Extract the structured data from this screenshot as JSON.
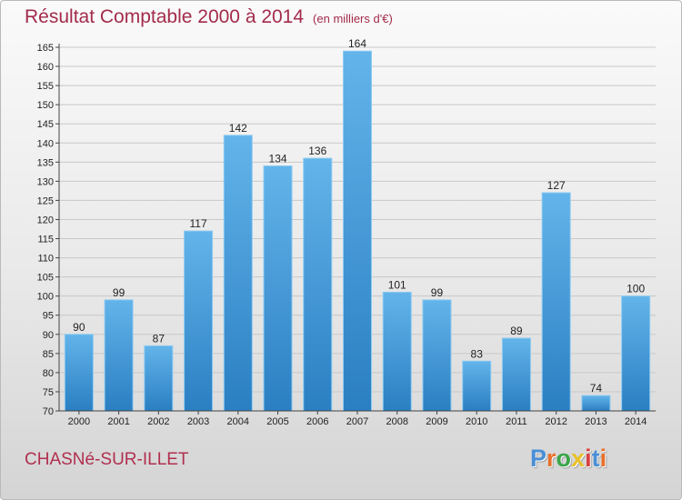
{
  "header": {
    "title": "Résultat Comptable 2000 à 2014",
    "unit": "(en milliers d'€)"
  },
  "footer": {
    "place": "CHASNé-SUR-ILLET",
    "logo": "Proxiti"
  },
  "colors": {
    "bar_light": "#63b4ea",
    "bar_dark": "#2a7fc2",
    "title": "#a32b4b",
    "logo": [
      "#4a8fd6",
      "#e8702a",
      "#3aa64a",
      "#e8c12a",
      "#d94040",
      "#4a8fd6",
      "#e8702a"
    ]
  },
  "chart_data": {
    "type": "bar",
    "title": "Résultat Comptable 2000 à 2014",
    "xlabel": "",
    "ylabel": "",
    "ylim": [
      70,
      165
    ],
    "yticks": [
      70,
      75,
      80,
      85,
      90,
      95,
      100,
      105,
      110,
      115,
      120,
      125,
      130,
      135,
      140,
      145,
      150,
      155,
      160,
      165
    ],
    "grid": true,
    "categories": [
      "2000",
      "2001",
      "2002",
      "2003",
      "2004",
      "2005",
      "2006",
      "2007",
      "2008",
      "2009",
      "2010",
      "2011",
      "2012",
      "2013",
      "2014"
    ],
    "values": [
      90,
      99,
      87,
      117,
      142,
      134,
      136,
      164,
      101,
      99,
      83,
      89,
      127,
      74,
      100
    ]
  }
}
